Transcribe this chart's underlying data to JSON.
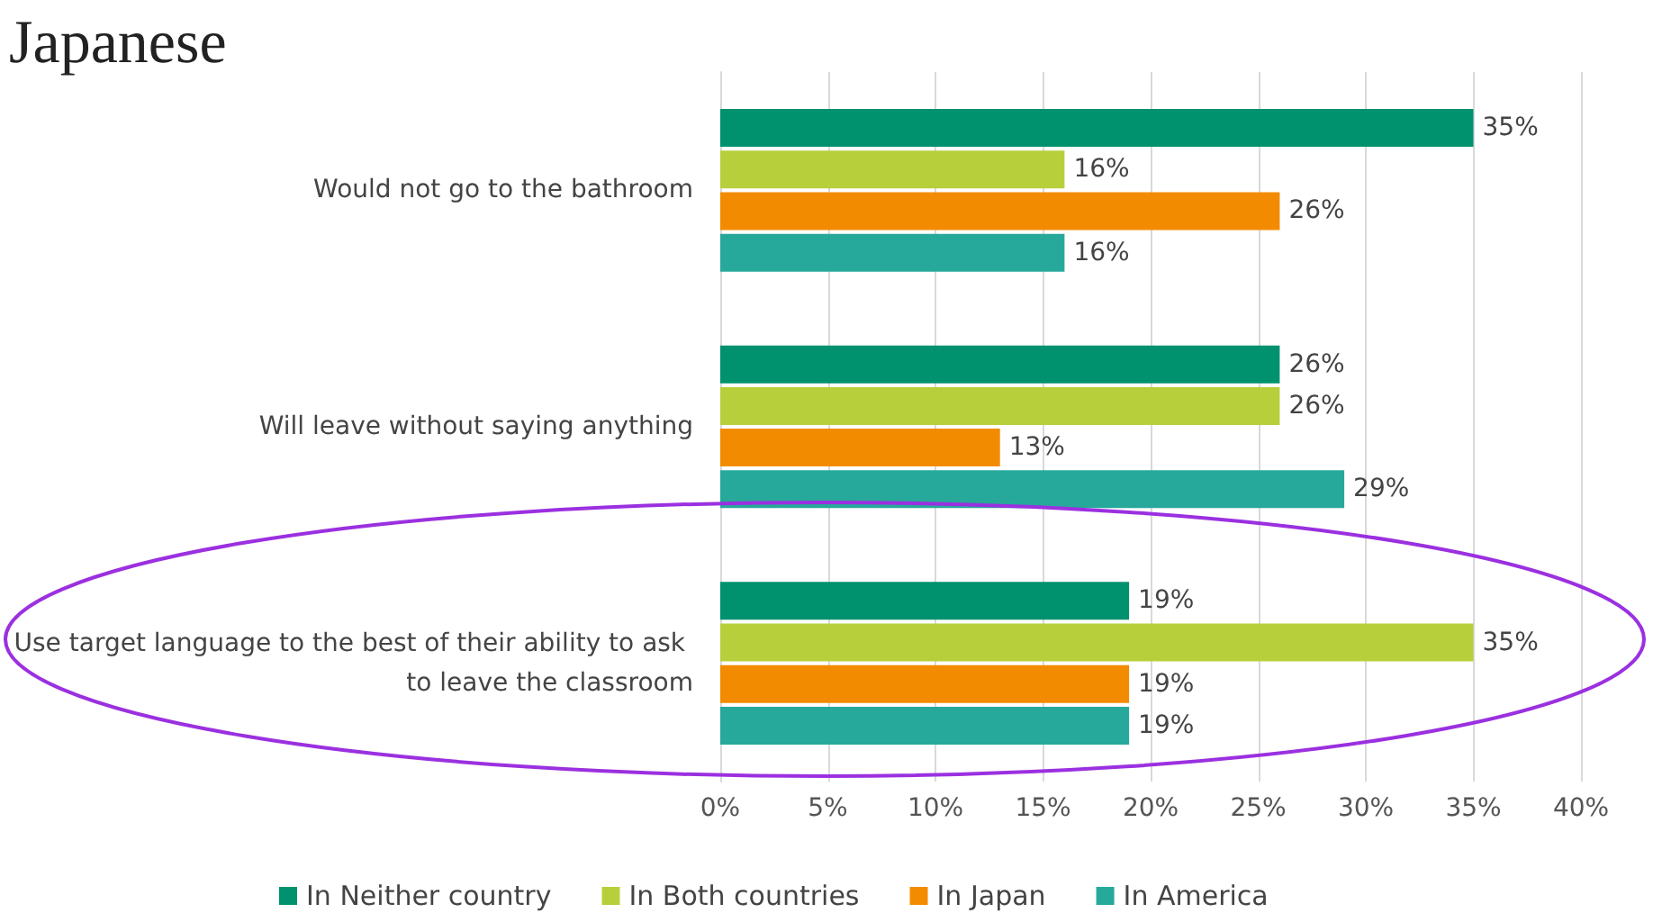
{
  "chart_data": {
    "type": "bar",
    "orientation": "horizontal",
    "title": "Japanese",
    "categories": [
      "Would not go to the bathroom",
      "Will leave without saying anything",
      "Use target language to the best of their ability to ask to leave the classroom"
    ],
    "series": [
      {
        "name": "In Neither country",
        "color": "#00916e",
        "values": [
          35,
          26,
          19
        ],
        "value_labels": [
          "35%",
          "26%",
          "19%"
        ]
      },
      {
        "name": "In Both countries",
        "color": "#b8cf3c",
        "values": [
          16,
          26,
          35
        ],
        "value_labels": [
          "16%",
          "26%",
          "35%"
        ]
      },
      {
        "name": "In Japan",
        "color": "#f38b00",
        "values": [
          26,
          13,
          19
        ],
        "value_labels": [
          "26%",
          "13%",
          "19%"
        ]
      },
      {
        "name": "In America",
        "color": "#26a99b",
        "values": [
          16,
          29,
          19
        ],
        "value_labels": [
          "16%",
          "29%",
          "19%"
        ]
      }
    ],
    "xlim": [
      0,
      40
    ],
    "xticks": [
      {
        "value": 0,
        "label": "0%"
      },
      {
        "value": 5,
        "label": "5%"
      },
      {
        "value": 10,
        "label": "10%"
      },
      {
        "value": 15,
        "label": "15%"
      },
      {
        "value": 20,
        "label": "20%"
      },
      {
        "value": 25,
        "label": "25%"
      },
      {
        "value": 30,
        "label": "30%"
      },
      {
        "value": 35,
        "label": "35%"
      },
      {
        "value": 40,
        "label": "40%"
      }
    ],
    "grid": "x",
    "legend": "bottom"
  }
}
